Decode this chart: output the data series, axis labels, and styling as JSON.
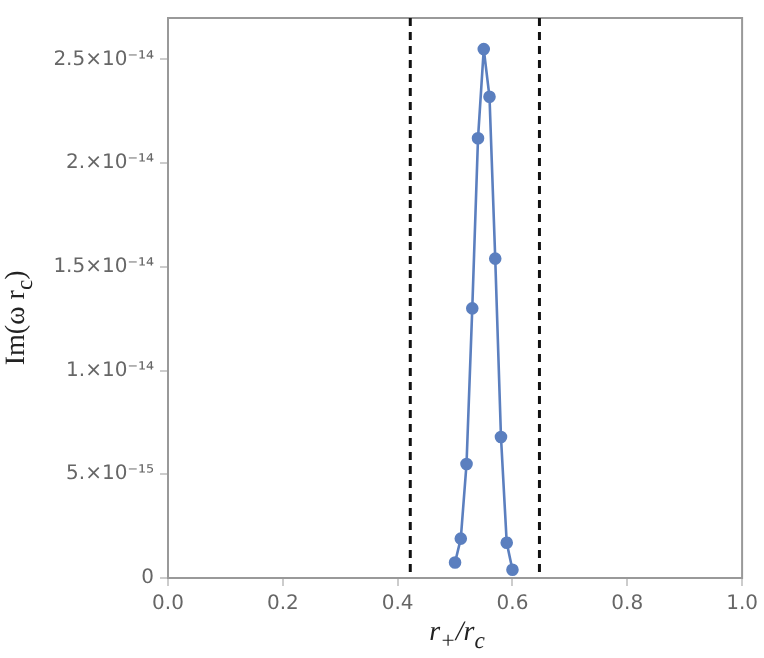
{
  "chart_data": {
    "type": "line",
    "xlabel": "r$_{+}$/r$_{c}$",
    "ylabel": "Im(ω r$_{c}$)",
    "x": [
      0.5,
      0.51,
      0.52,
      0.53,
      0.54,
      0.55,
      0.56,
      0.57,
      0.58,
      0.59,
      0.6
    ],
    "series": [
      {
        "color": "#5b7fbf",
        "values": [
          7.5e-16,
          1.9e-15,
          5.5e-15,
          1.3e-14,
          2.12e-14,
          2.55e-14,
          2.32e-14,
          1.54e-14,
          6.8e-15,
          1.7e-15,
          4e-16
        ]
      }
    ],
    "xlim": [
      0,
      1
    ],
    "xticks": [
      {
        "value": 0,
        "label": "0.0"
      },
      0.2,
      0.4,
      0.6,
      0.8,
      {
        "value": 1,
        "label": "1.0"
      }
    ],
    "ylim": [
      0,
      2.7e-14
    ],
    "yticks": [
      0,
      {
        "value": 5e-15,
        "label": "5.×10⁻¹⁵"
      },
      {
        "value": 1e-14,
        "label": "1.×10⁻¹⁴"
      },
      {
        "value": 1.5e-14,
        "label": "1.5×10⁻¹⁴"
      },
      {
        "value": 2e-14,
        "label": "2.×10⁻¹⁴"
      },
      {
        "value": 2.5e-14,
        "label": "2.5×10⁻¹⁴"
      }
    ],
    "ref_lines": [
      {
        "axis": "x",
        "value": 0.422,
        "color": "#111111",
        "line_style": "dashed"
      },
      {
        "axis": "x",
        "value": 0.647,
        "color": "#111111",
        "line_style": "dashed"
      }
    ],
    "marker": "circle",
    "line_style": "solid",
    "grid": false,
    "legend": false
  }
}
